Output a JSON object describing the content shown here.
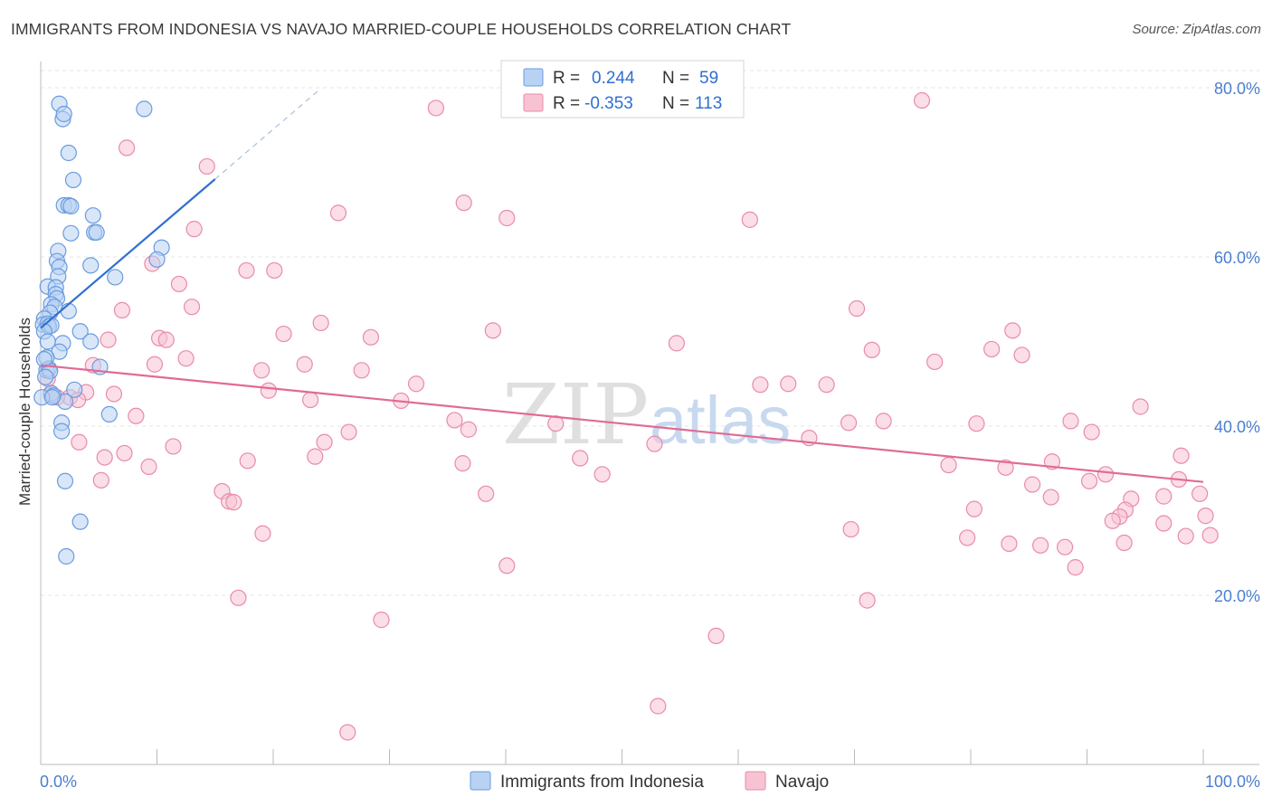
{
  "title": "IMMIGRANTS FROM INDONESIA VS NAVAJO MARRIED-COUPLE HOUSEHOLDS CORRELATION CHART",
  "source": "Source: ZipAtlas.com",
  "watermark": {
    "zip": "ZIP",
    "atlas": "atlas"
  },
  "colors": {
    "blue_fill": "#b8d2f3",
    "blue_stroke": "#6a9be0",
    "blue_line": "#2f6fd1",
    "pink_fill": "#f7c3d3",
    "pink_stroke": "#e98ba9",
    "pink_line": "#e06b95",
    "grid": "#e6e6e6",
    "axis_text": "#4a7fcf"
  },
  "legend_box": {
    "r_label": "R =",
    "n_label": "N =",
    "rows": [
      {
        "r": "0.244",
        "n": "59",
        "color": "blue"
      },
      {
        "r": "-0.353",
        "n": "113",
        "color": "pink"
      }
    ]
  },
  "chart_data": {
    "type": "scatter",
    "title": "IMMIGRANTS FROM INDONESIA VS NAVAJO MARRIED-COUPLE HOUSEHOLDS CORRELATION CHART",
    "xlabel": "",
    "ylabel": "Married-couple Households",
    "xlim": [
      0,
      100
    ],
    "ylim": [
      0,
      80
    ],
    "x_tick_labels": [
      "0.0%",
      "100.0%"
    ],
    "y_ticks": [
      20,
      40,
      60,
      80
    ],
    "y_tick_labels": [
      "20.0%",
      "40.0%",
      "60.0%",
      "80.0%"
    ],
    "grid": true,
    "legend_position": "bottom-center",
    "series": [
      {
        "name": "Immigrants from Indonesia",
        "color": "blue",
        "R": 0.244,
        "N": 59,
        "trend": {
          "x": [
            0,
            15
          ],
          "y": [
            51.6,
            69.2
          ],
          "dashed_extension_to": [
            24,
            79.8
          ]
        },
        "points": [
          [
            1.6,
            78.1
          ],
          [
            1.9,
            76.3
          ],
          [
            2.0,
            76.9
          ],
          [
            8.9,
            77.5
          ],
          [
            2.4,
            72.3
          ],
          [
            2.8,
            69.1
          ],
          [
            2.0,
            66.1
          ],
          [
            2.4,
            66.1
          ],
          [
            2.6,
            66.0
          ],
          [
            4.5,
            64.9
          ],
          [
            2.6,
            62.8
          ],
          [
            4.6,
            62.9
          ],
          [
            4.8,
            62.9
          ],
          [
            10.4,
            61.1
          ],
          [
            1.5,
            60.7
          ],
          [
            1.4,
            59.5
          ],
          [
            4.3,
            59.0
          ],
          [
            1.6,
            58.8
          ],
          [
            1.5,
            57.7
          ],
          [
            6.4,
            57.6
          ],
          [
            10.0,
            59.7
          ],
          [
            0.6,
            56.5
          ],
          [
            1.3,
            56.4
          ],
          [
            1.3,
            55.6
          ],
          [
            1.4,
            55.1
          ],
          [
            0.9,
            54.4
          ],
          [
            1.2,
            54.1
          ],
          [
            2.4,
            53.6
          ],
          [
            0.8,
            53.4
          ],
          [
            0.3,
            52.7
          ],
          [
            0.2,
            52.0
          ],
          [
            0.6,
            52.1
          ],
          [
            0.7,
            51.8
          ],
          [
            0.9,
            51.9
          ],
          [
            0.3,
            51.2
          ],
          [
            3.4,
            51.2
          ],
          [
            0.6,
            50.0
          ],
          [
            1.9,
            49.8
          ],
          [
            4.3,
            50.0
          ],
          [
            1.6,
            48.8
          ],
          [
            0.5,
            48.1
          ],
          [
            0.5,
            46.6
          ],
          [
            0.7,
            46.8
          ],
          [
            0.8,
            46.5
          ],
          [
            5.1,
            47.0
          ],
          [
            2.9,
            44.3
          ],
          [
            0.9,
            43.9
          ],
          [
            1.1,
            43.6
          ],
          [
            2.1,
            42.9
          ],
          [
            0.1,
            43.4
          ],
          [
            5.9,
            41.4
          ],
          [
            1.8,
            40.4
          ],
          [
            1.8,
            39.4
          ],
          [
            2.1,
            33.5
          ],
          [
            3.4,
            28.7
          ],
          [
            2.2,
            24.6
          ],
          [
            0.4,
            45.8
          ],
          [
            0.3,
            47.9
          ],
          [
            1.0,
            43.4
          ]
        ]
      },
      {
        "name": "Navajo",
        "color": "pink",
        "R": -0.353,
        "N": 113,
        "trend": {
          "x": [
            0,
            100
          ],
          "y": [
            47.2,
            33.4
          ]
        },
        "points": [
          [
            75.8,
            78.5
          ],
          [
            34.0,
            77.6
          ],
          [
            7.4,
            72.9
          ],
          [
            14.3,
            70.7
          ],
          [
            36.4,
            66.4
          ],
          [
            25.6,
            65.2
          ],
          [
            40.1,
            64.6
          ],
          [
            61.0,
            64.4
          ],
          [
            13.2,
            63.3
          ],
          [
            9.6,
            59.2
          ],
          [
            17.7,
            58.4
          ],
          [
            20.1,
            58.4
          ],
          [
            11.9,
            56.8
          ],
          [
            13.0,
            54.1
          ],
          [
            7.0,
            53.7
          ],
          [
            70.2,
            53.9
          ],
          [
            24.1,
            52.2
          ],
          [
            38.9,
            51.3
          ],
          [
            83.6,
            51.3
          ],
          [
            20.9,
            50.9
          ],
          [
            10.2,
            50.4
          ],
          [
            10.8,
            50.2
          ],
          [
            28.4,
            50.5
          ],
          [
            5.8,
            50.2
          ],
          [
            54.7,
            49.8
          ],
          [
            71.5,
            49.0
          ],
          [
            81.8,
            49.1
          ],
          [
            84.4,
            48.4
          ],
          [
            12.5,
            48.0
          ],
          [
            22.7,
            47.3
          ],
          [
            4.5,
            47.2
          ],
          [
            76.9,
            47.6
          ],
          [
            9.8,
            47.3
          ],
          [
            19.0,
            46.6
          ],
          [
            27.6,
            46.6
          ],
          [
            0.6,
            45.6
          ],
          [
            32.3,
            45.0
          ],
          [
            61.9,
            44.9
          ],
          [
            64.3,
            45.0
          ],
          [
            67.6,
            44.9
          ],
          [
            3.9,
            44.0
          ],
          [
            19.6,
            44.2
          ],
          [
            6.3,
            43.8
          ],
          [
            0.9,
            43.7
          ],
          [
            2.5,
            43.4
          ],
          [
            1.4,
            43.4
          ],
          [
            3.2,
            43.1
          ],
          [
            23.2,
            43.1
          ],
          [
            31.0,
            43.0
          ],
          [
            94.6,
            42.3
          ],
          [
            8.2,
            41.2
          ],
          [
            44.3,
            40.3
          ],
          [
            35.6,
            40.7
          ],
          [
            72.5,
            40.6
          ],
          [
            69.5,
            40.4
          ],
          [
            80.5,
            40.3
          ],
          [
            88.6,
            40.6
          ],
          [
            26.5,
            39.3
          ],
          [
            36.8,
            39.6
          ],
          [
            66.1,
            38.6
          ],
          [
            90.4,
            39.3
          ],
          [
            3.3,
            38.1
          ],
          [
            24.4,
            38.1
          ],
          [
            11.4,
            37.6
          ],
          [
            52.8,
            37.9
          ],
          [
            7.2,
            36.8
          ],
          [
            5.5,
            36.3
          ],
          [
            23.6,
            36.4
          ],
          [
            46.4,
            36.2
          ],
          [
            87.0,
            35.8
          ],
          [
            98.1,
            36.5
          ],
          [
            17.8,
            35.9
          ],
          [
            36.3,
            35.6
          ],
          [
            9.3,
            35.2
          ],
          [
            83.0,
            35.1
          ],
          [
            78.1,
            35.4
          ],
          [
            91.6,
            34.3
          ],
          [
            48.3,
            34.3
          ],
          [
            5.2,
            33.6
          ],
          [
            90.2,
            33.5
          ],
          [
            97.9,
            33.7
          ],
          [
            85.3,
            33.1
          ],
          [
            15.6,
            32.3
          ],
          [
            38.3,
            32.0
          ],
          [
            99.7,
            32.0
          ],
          [
            86.9,
            31.6
          ],
          [
            96.6,
            31.7
          ],
          [
            93.8,
            31.4
          ],
          [
            16.2,
            31.1
          ],
          [
            16.6,
            31.0
          ],
          [
            93.3,
            30.1
          ],
          [
            80.3,
            30.2
          ],
          [
            100.2,
            29.4
          ],
          [
            92.8,
            29.3
          ],
          [
            92.2,
            28.8
          ],
          [
            96.6,
            28.5
          ],
          [
            69.7,
            27.8
          ],
          [
            19.1,
            27.3
          ],
          [
            79.7,
            26.8
          ],
          [
            100.6,
            27.1
          ],
          [
            98.5,
            27.0
          ],
          [
            83.3,
            26.1
          ],
          [
            93.2,
            26.2
          ],
          [
            88.1,
            25.7
          ],
          [
            86.0,
            25.9
          ],
          [
            89.0,
            23.3
          ],
          [
            40.1,
            23.5
          ],
          [
            17.0,
            19.7
          ],
          [
            71.1,
            19.4
          ],
          [
            29.3,
            17.1
          ],
          [
            58.1,
            15.2
          ],
          [
            53.1,
            6.9
          ],
          [
            26.4,
            3.8
          ]
        ]
      }
    ]
  }
}
